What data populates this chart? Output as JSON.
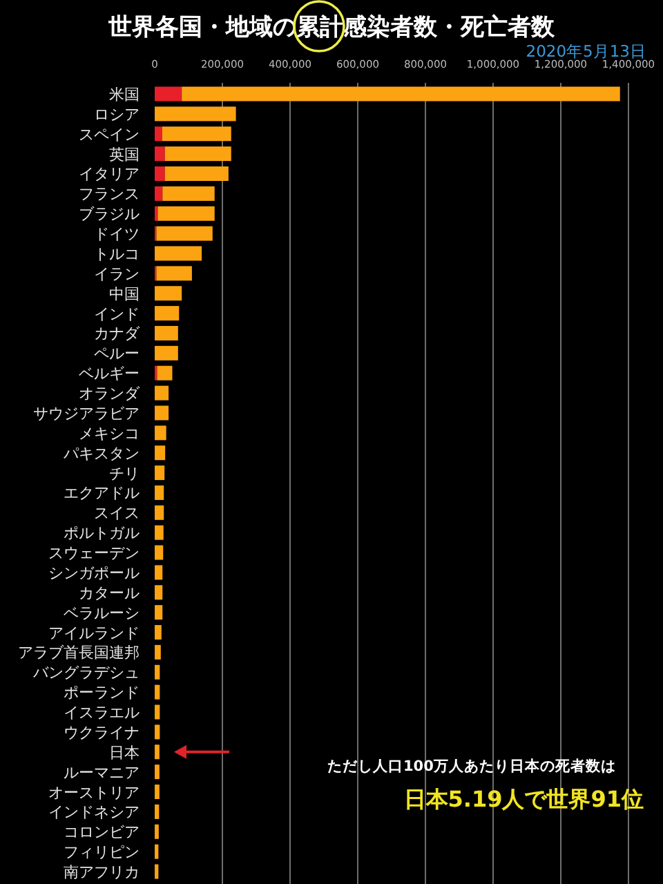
{
  "chart_data": {
    "type": "bar",
    "orientation": "horizontal",
    "stacked": true,
    "title": "世界各国・地域の累計感染者数・死亡者数",
    "subtitle": "2020年5月13日",
    "categories": [
      "米国",
      "ロシア",
      "スペイン",
      "英国",
      "イタリア",
      "フランス",
      "ブラジル",
      "ドイツ",
      "トルコ",
      "イラン",
      "中国",
      "インド",
      "カナダ",
      "ペルー",
      "ベルギー",
      "オランダ",
      "サウジアラビア",
      "メキシコ",
      "パキスタン",
      "チリ",
      "エクアドル",
      "スイス",
      "ポルトガル",
      "スウェーデン",
      "シンガポール",
      "カタール",
      "ベラルーシ",
      "アイルランド",
      "アラブ首長国連邦",
      "バングラデシュ",
      "ポーランド",
      "イスラエル",
      "ウクライナ",
      "日本",
      "ルーマニア",
      "オーストリア",
      "インドネシア",
      "コロンビア",
      "フィリピン",
      "南アフリカ"
    ],
    "series": [
      {
        "color": "#e8202a",
        "values": [
          80000,
          null,
          22000,
          30000,
          30000,
          23000,
          9000,
          5000,
          null,
          5000,
          null,
          null,
          null,
          null,
          7000,
          null,
          null,
          null,
          null,
          null,
          null,
          null,
          null,
          null,
          null,
          null,
          null,
          null,
          null,
          null,
          null,
          null,
          null,
          null,
          null,
          null,
          null,
          null,
          null,
          null
        ]
      },
      {
        "color": "#fca311",
        "values": [
          1295000,
          240000,
          204000,
          196000,
          188000,
          154000,
          168000,
          166000,
          139000,
          105000,
          80000,
          72000,
          69000,
          69000,
          45000,
          41000,
          41000,
          34000,
          31000,
          29000,
          27000,
          27000,
          26000,
          25000,
          23000,
          23000,
          23000,
          20000,
          18000,
          15000,
          15000,
          15000,
          15000,
          14000,
          14000,
          14000,
          13000,
          12000,
          11000,
          11000
        ]
      }
    ],
    "xlim": [
      0,
      1400000
    ],
    "xticks": [
      0,
      {
        "value": 200000,
        "label": "200,000"
      },
      {
        "value": 400000,
        "label": "400,000"
      },
      {
        "value": 600000,
        "label": "600,000"
      },
      {
        "value": 800000,
        "label": "800,000"
      },
      {
        "value": 1000000,
        "label": "1,000,000"
      },
      {
        "value": 1200000,
        "label": "1,200,000"
      },
      {
        "value": 1400000,
        "label": "1,400,000"
      }
    ],
    "grid": "x",
    "annotations": [
      "ただし人口100万人あたり日本の死者数は",
      "日本5.19人で世界91位"
    ]
  }
}
